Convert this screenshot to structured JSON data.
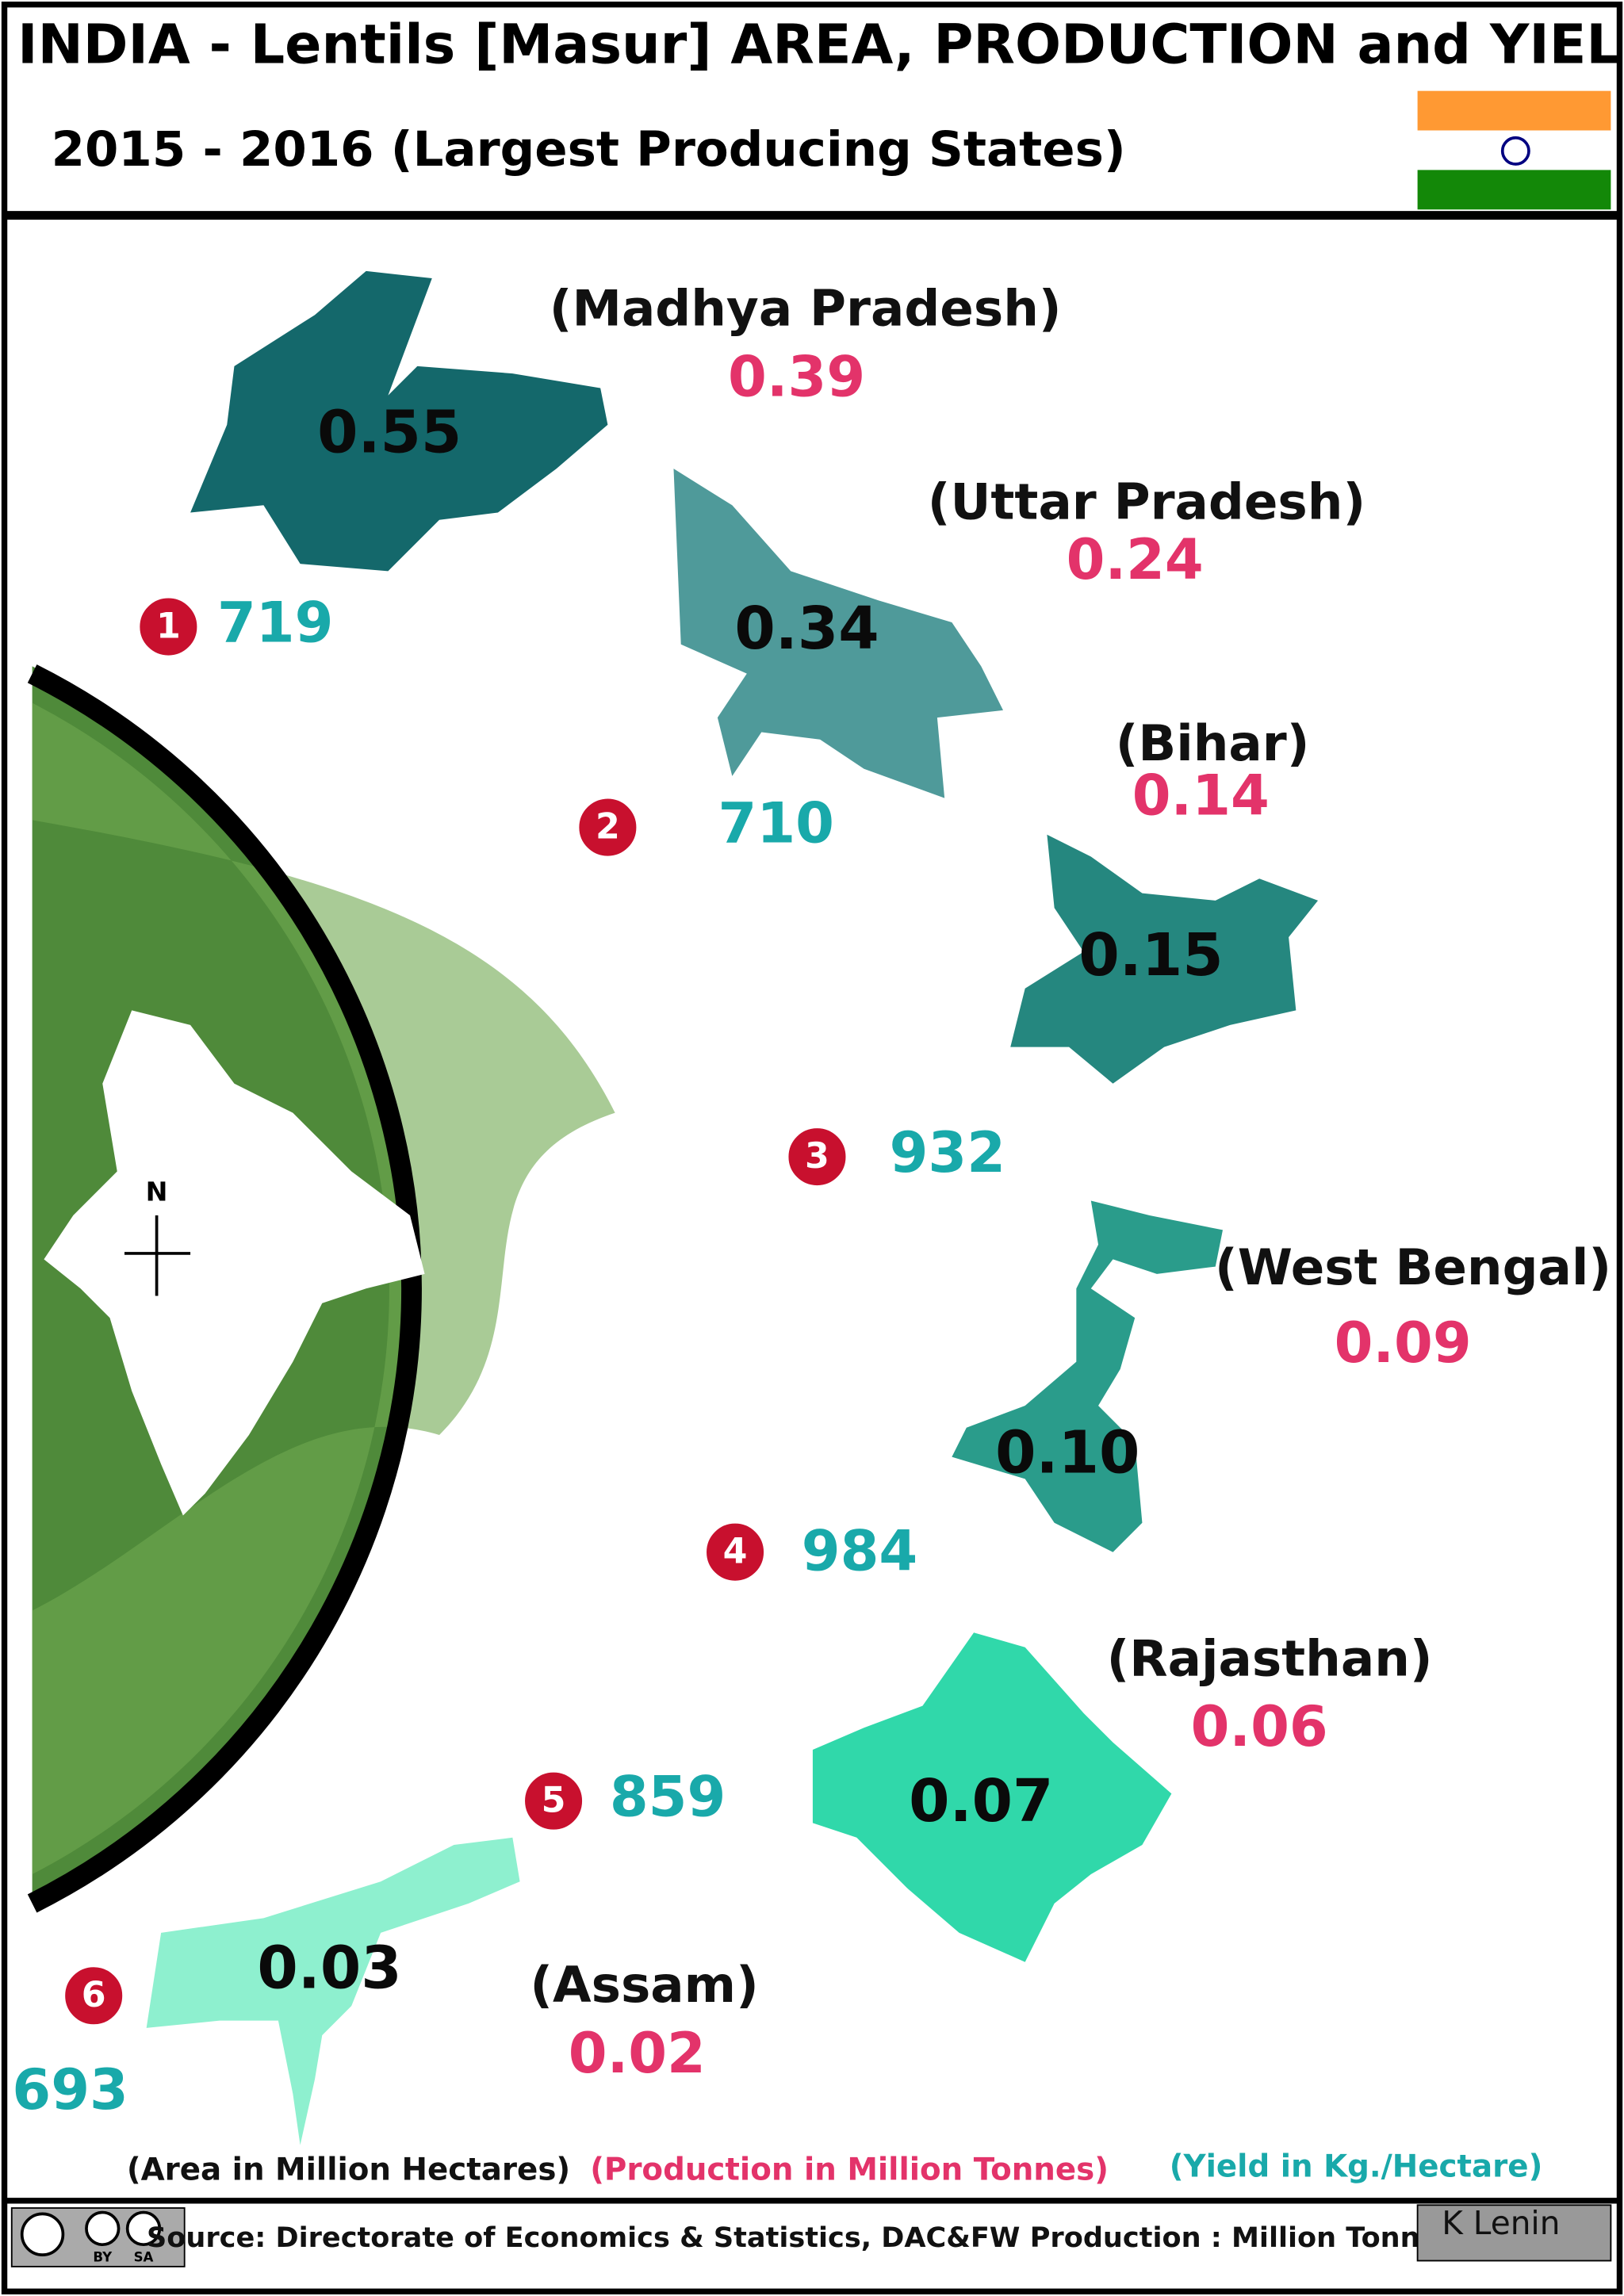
{
  "header": {
    "title": "INDIA - Lentils [Masur] AREA, PRODUCTION and  YIELD",
    "subtitle": "2015 - 2016 (Largest Producing States)"
  },
  "map_label": "N",
  "states": [
    {
      "rank": "1",
      "name": "(Madhya  Pradesh)",
      "area": "0.55",
      "production": "0.39",
      "yield": "719"
    },
    {
      "rank": "2",
      "name": "(Uttar  Pradesh)",
      "area": "0.34",
      "production": "0.24",
      "yield": "710"
    },
    {
      "rank": "3",
      "name": "(Bihar)",
      "area": "0.15",
      "production": "0.14",
      "yield": "932"
    },
    {
      "rank": "4",
      "name": "(West Bengal)",
      "area": "0.10",
      "production": "0.09",
      "yield": "984"
    },
    {
      "rank": "5",
      "name": "(Rajasthan)",
      "area": "0.07",
      "production": "0.06",
      "yield": "859"
    },
    {
      "rank": "6",
      "name": "(Assam)",
      "area": "0.03",
      "production": "0.02",
      "yield": "693"
    }
  ],
  "legend": {
    "area": "(Area in Million Hectares)",
    "production": "(Production in Million Tonnes)",
    "yield": "(Yield in Kg./Hectare)"
  },
  "footer": {
    "source": "Source: Directorate of Economics & Statistics, DAC&FW  Production : Million Tonnes",
    "author": "K Lenin",
    "license": [
      "BY",
      "SA"
    ]
  }
}
